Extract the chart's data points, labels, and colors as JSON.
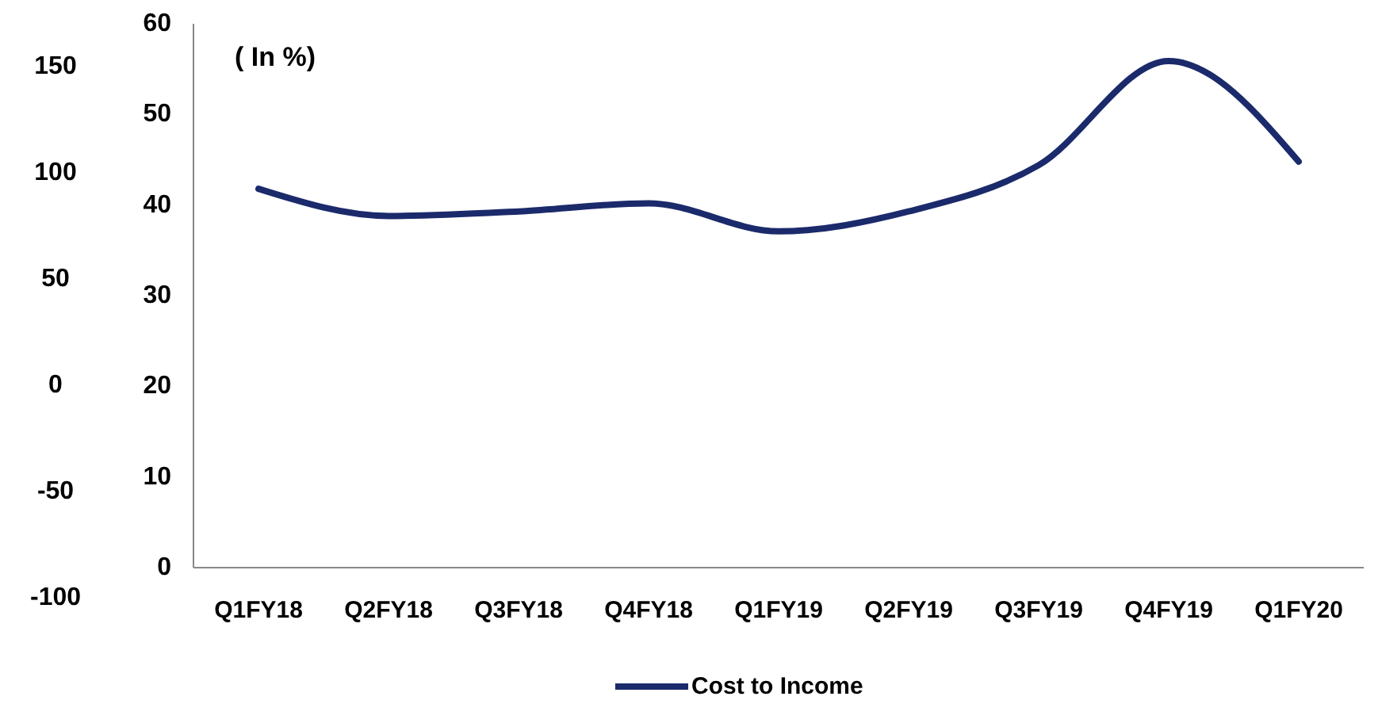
{
  "chart_data": {
    "type": "line",
    "categories": [
      "Q1FY18",
      "Q2FY18",
      "Q3FY18",
      "Q4FY18",
      "Q1FY19",
      "Q2FY19",
      "Q3FY19",
      "Q4FY19",
      "Q1FY20"
    ],
    "series": [
      {
        "name": "Cost to Income",
        "color": "#1b2a6b",
        "values": [
          41.8,
          38.8,
          39.3,
          40.2,
          37.1,
          39.3,
          44.4,
          55.9,
          44.8
        ]
      }
    ],
    "ylim": [
      0,
      60
    ],
    "yticks": [
      0,
      10,
      20,
      30,
      40,
      50,
      60
    ],
    "y2lim": [
      -100,
      150
    ],
    "y2ticks": [
      -100,
      -50,
      0,
      50,
      100,
      150
    ],
    "annotations": [
      "( In %)"
    ],
    "legend": "bottom",
    "grid": false,
    "line_style": "solid"
  }
}
